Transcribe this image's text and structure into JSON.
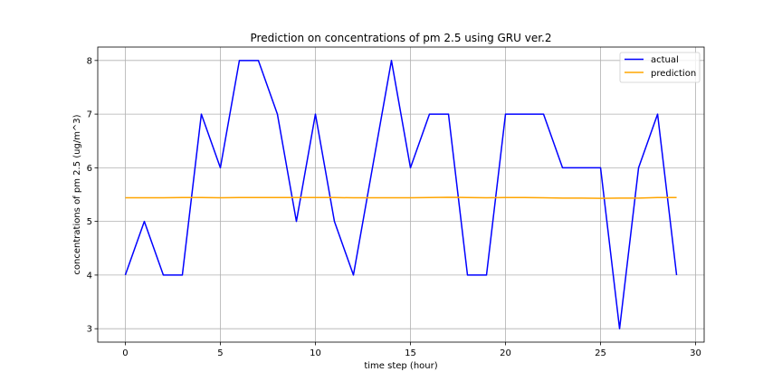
{
  "chart_data": {
    "type": "line",
    "title": "Prediction on concentrations of pm 2.5 using GRU ver.2",
    "xlabel": "time step (hour)",
    "ylabel": "concentrations of pm 2.5 (ug/m^3)",
    "xlim": [
      -1.45,
      30.45
    ],
    "ylim": [
      2.75,
      8.25
    ],
    "xticks": [
      0,
      5,
      10,
      15,
      20,
      25,
      30
    ],
    "yticks": [
      3,
      4,
      5,
      6,
      7,
      8
    ],
    "grid": true,
    "legend_position": "top-right",
    "x": [
      0,
      1,
      2,
      3,
      4,
      5,
      6,
      7,
      8,
      9,
      10,
      11,
      12,
      13,
      14,
      15,
      16,
      17,
      18,
      19,
      20,
      21,
      22,
      23,
      24,
      25,
      26,
      27,
      28,
      29
    ],
    "series": [
      {
        "name": "actual",
        "color": "#0000ff",
        "values": [
          4,
          5,
          4,
          4,
          7,
          6,
          8,
          8,
          7,
          5,
          7,
          5,
          4,
          6,
          8,
          6,
          7,
          7,
          4,
          4,
          7,
          7,
          7,
          6,
          6,
          6,
          3,
          6,
          7,
          4
        ]
      },
      {
        "name": "prediction",
        "color": "#ffa500",
        "values": [
          5.44,
          5.44,
          5.44,
          5.445,
          5.445,
          5.44,
          5.445,
          5.445,
          5.445,
          5.445,
          5.445,
          5.445,
          5.44,
          5.44,
          5.44,
          5.44,
          5.445,
          5.45,
          5.445,
          5.44,
          5.445,
          5.445,
          5.44,
          5.435,
          5.435,
          5.43,
          5.435,
          5.435,
          5.445,
          5.445
        ]
      }
    ]
  }
}
